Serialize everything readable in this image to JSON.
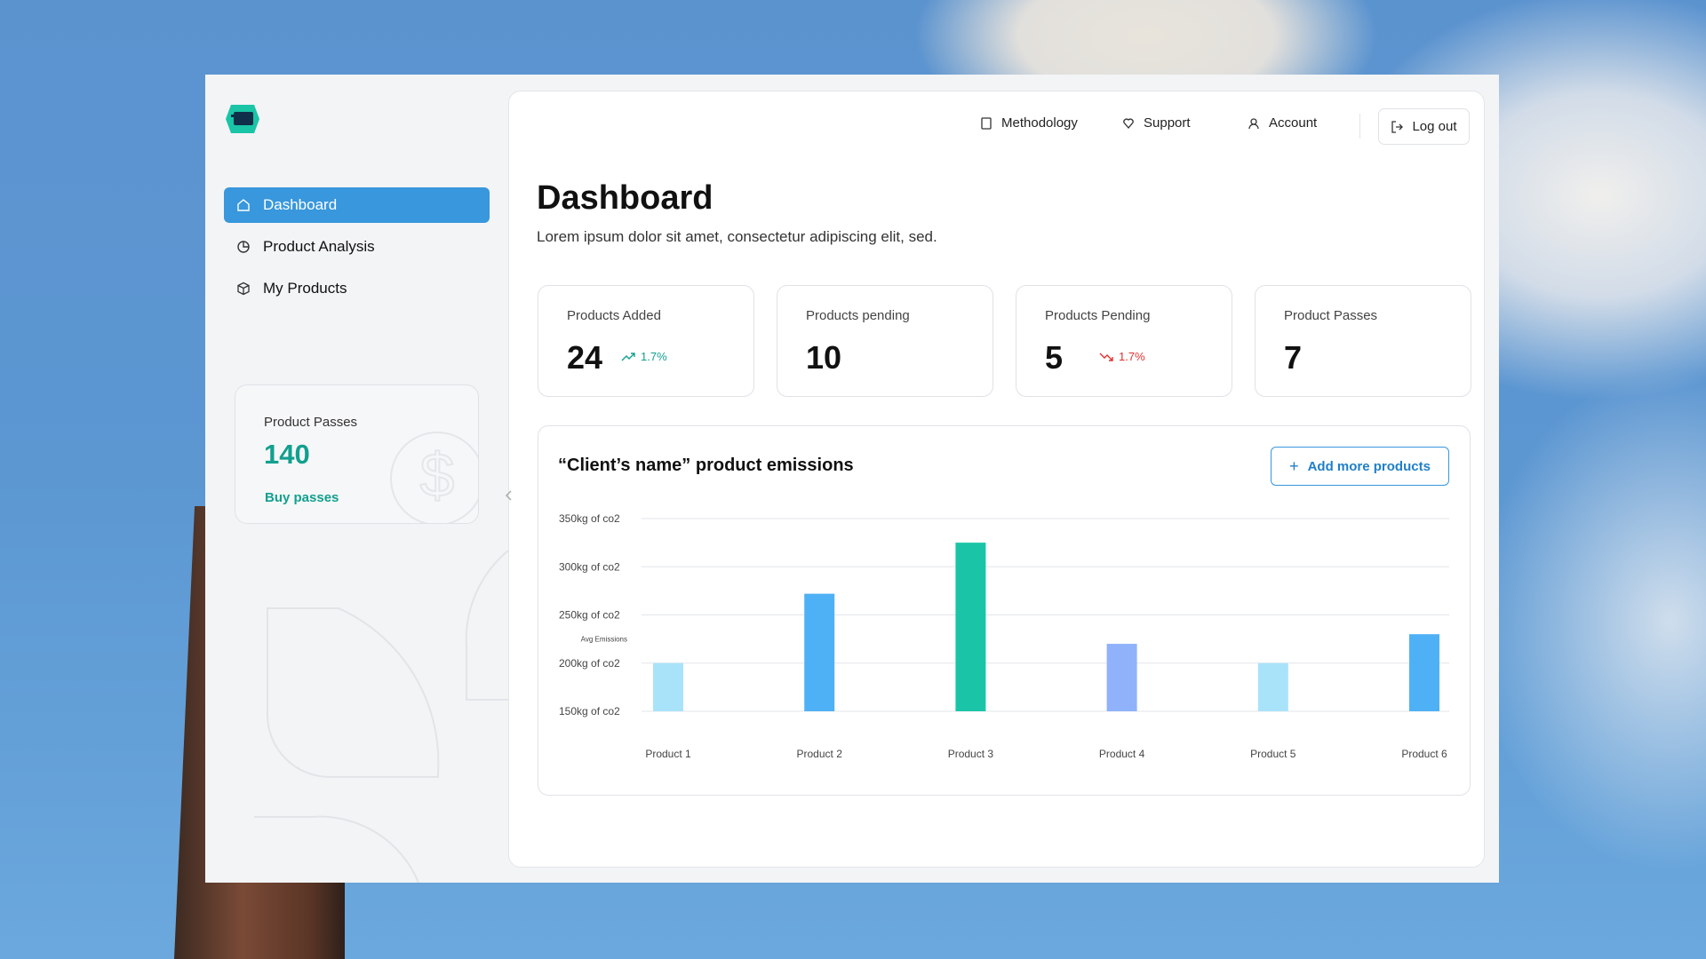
{
  "nav": [
    "Dashboard",
    "Product Analysis",
    "My Products"
  ],
  "passes_card": {
    "label": "Product Passes",
    "value": 140,
    "link": "Buy passes"
  },
  "top_nav": [
    "Methodology",
    "Support",
    "Account",
    "Log out"
  ],
  "header": {
    "title": "Dashboard",
    "subtitle": "Lorem ipsum dolor sit amet, consectetur adipiscing elit, sed."
  },
  "stats": [
    {
      "label": "Products Added",
      "value": 24,
      "change": "1.7%",
      "trend": "up"
    },
    {
      "label": "Products pending",
      "value": 10
    },
    {
      "label": "Products Pending",
      "value": 5,
      "change": "1.7%",
      "trend": "down"
    },
    {
      "label": "Product Passes",
      "value": 7
    }
  ],
  "chart_data": {
    "type": "bar",
    "title": "“Client’s name” product emissions",
    "button": "Add more products",
    "categories": [
      "Product 1",
      "Product 2",
      "Product 3",
      "Product 4",
      "Product 5",
      "Product 6"
    ],
    "values": [
      200,
      272,
      325,
      220,
      200,
      230
    ],
    "colors": [
      "#a9e3fa",
      "#4fb1f5",
      "#19c5a6",
      "#8fb2fa",
      "#a9e3fa",
      "#4fb1f5"
    ],
    "ylim": [
      150,
      350
    ],
    "yticks": [
      {
        "value": 150,
        "label": "150kg of co2"
      },
      {
        "value": 200,
        "label": "200kg of co2"
      },
      {
        "value": 250,
        "label": "250kg of co2"
      },
      {
        "value": 300,
        "label": "300kg of co2"
      },
      {
        "value": 350,
        "label": "350kg of co2"
      }
    ],
    "grid": true,
    "annotations": [
      {
        "text": "Avg Emissions",
        "y": 225
      }
    ]
  }
}
